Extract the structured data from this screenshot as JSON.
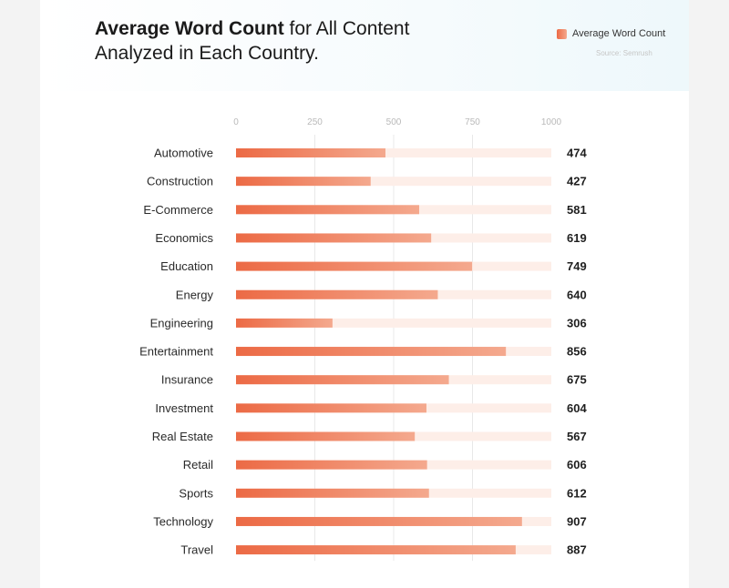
{
  "header": {
    "title_bold": "Average Word Count",
    "title_rest_line1": " for All Content",
    "title_line2": "Analyzed in Each Country.",
    "legend_label": "Average Word Count",
    "source": "Source: Semrush"
  },
  "colors": {
    "bar_start": "#ec6a45",
    "bar_end": "#f4a98e",
    "track": "#fdeee8",
    "grid": "#e8e8e8"
  },
  "chart_data": {
    "type": "bar",
    "orientation": "horizontal",
    "title": "Average Word Count for All Content Analyzed in Each Country.",
    "legend": [
      "Average Word Count"
    ],
    "legend_position": "top-right",
    "xlim": [
      0,
      1000
    ],
    "ticks": [
      0,
      250,
      500,
      750,
      1000
    ],
    "tick_labels": [
      "0",
      "250",
      "500",
      "750",
      "1000"
    ],
    "categories": [
      "Automotive",
      "Construction",
      "E-Commerce",
      "Economics",
      "Education",
      "Energy",
      "Engineering",
      "Entertainment",
      "Insurance",
      "Investment",
      "Real Estate",
      "Retail",
      "Sports",
      "Technology",
      "Travel"
    ],
    "series": [
      {
        "name": "Average Word Count",
        "values": [
          474,
          427,
          581,
          619,
          749,
          640,
          306,
          856,
          675,
          604,
          567,
          606,
          612,
          907,
          887
        ]
      }
    ],
    "value_labels": [
      "474",
      "427",
      "581",
      "619",
      "749",
      "640",
      "306",
      "856",
      "675",
      "604",
      "567",
      "606",
      "612",
      "907",
      "887"
    ],
    "grid": true
  }
}
